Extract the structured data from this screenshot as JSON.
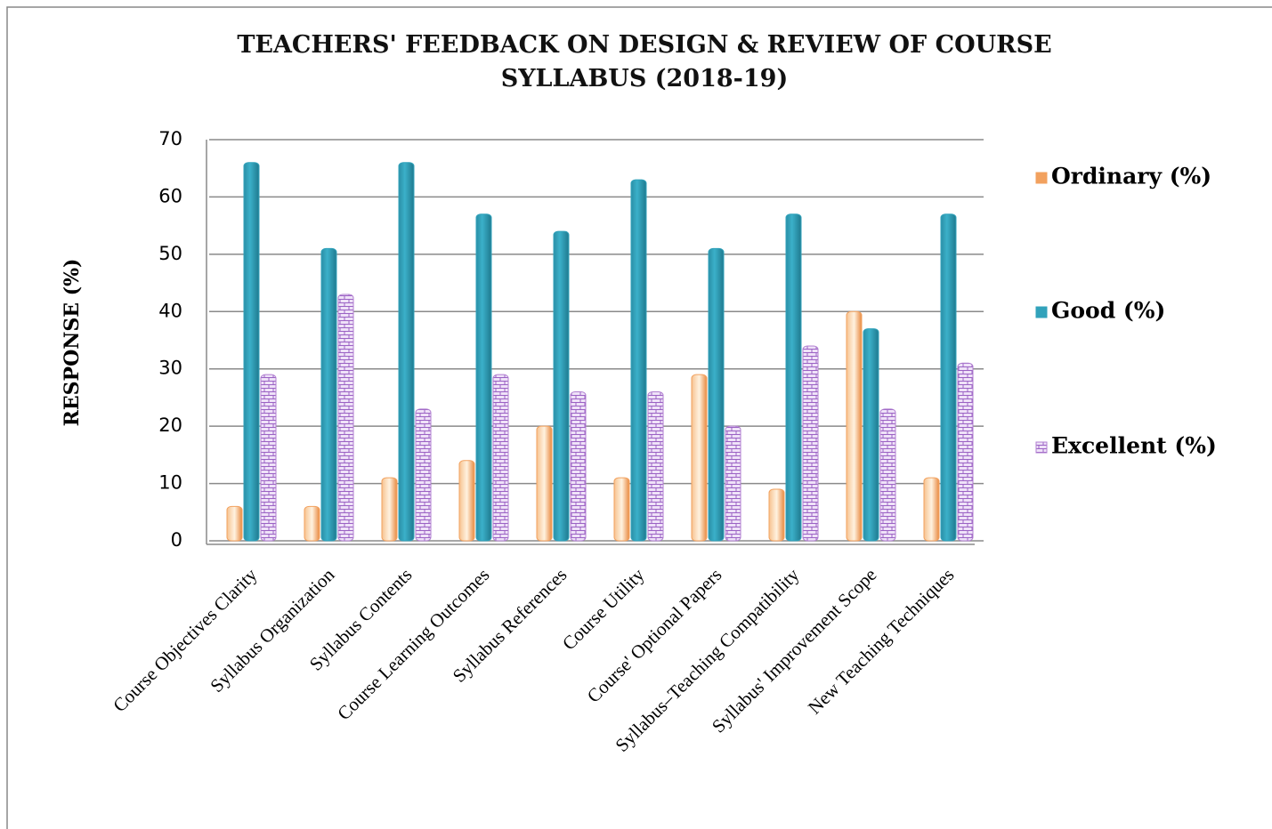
{
  "chart_data": {
    "type": "bar",
    "title": "TEACHERS' FEEDBACK ON DESIGN & REVIEW OF COURSE SYLLABUS (2018-19)",
    "y_label": "RESPONSE (%)",
    "categories": [
      "Course Objectives Clarity",
      "Syllabus Organization",
      "Syllabus Contents",
      "Course Learning Outcomes",
      "Syllabus References",
      "Course Utility",
      "Course' Optional Papers",
      "Syllabus–Teaching Compatibility",
      "Syllabus' Improvement Scope",
      "New Teaching Techniques"
    ],
    "series": [
      {
        "name": "Ordinary (%)",
        "color": "#f2a15e",
        "values": [
          6,
          6,
          11,
          14,
          20,
          11,
          29,
          9,
          40,
          11
        ]
      },
      {
        "name": "Good (%)",
        "color": "#31a2bb",
        "values": [
          66,
          51,
          66,
          57,
          54,
          63,
          51,
          57,
          37,
          57
        ]
      },
      {
        "name": "Excellent (%)",
        "color": "#b07fd0",
        "values": [
          29,
          43,
          23,
          29,
          26,
          26,
          20,
          34,
          23,
          31
        ]
      }
    ],
    "ylim": [
      0,
      70
    ],
    "yticks": [
      0,
      10,
      20,
      30,
      40,
      50,
      60,
      70
    ],
    "grid": true,
    "legend": "right"
  }
}
